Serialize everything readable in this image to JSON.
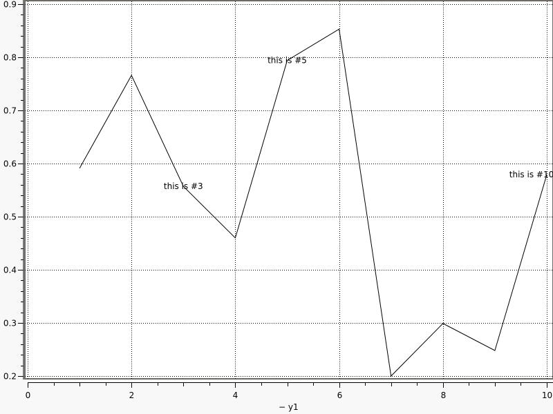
{
  "chart_data": {
    "type": "line",
    "title": "",
    "xlabel": "",
    "ylabel": "",
    "xlim": [
      0,
      10
    ],
    "ylim": [
      0.2,
      0.9
    ],
    "grid": true,
    "legend": {
      "position": "bottom",
      "entries": [
        "y1"
      ]
    },
    "legend_text": "− y1",
    "x_ticks": [
      "0",
      "2",
      "4",
      "6",
      "8",
      "10"
    ],
    "y_ticks": [
      "0.2",
      "0.3",
      "0.4",
      "0.5",
      "0.6",
      "0.7",
      "0.8",
      "0.9"
    ],
    "series": [
      {
        "name": "y1",
        "color": "#000000",
        "x": [
          1,
          2,
          3,
          4,
          5,
          6,
          7,
          8,
          9,
          10
        ],
        "y": [
          0.591,
          0.766,
          0.557,
          0.46,
          0.794,
          0.853,
          0.2,
          0.299,
          0.248,
          0.579
        ]
      }
    ],
    "annotations": [
      {
        "text": "this is #3",
        "x": 3,
        "y": 0.557
      },
      {
        "text": "this is #5",
        "x": 5,
        "y": 0.794
      },
      {
        "text": "this is #10",
        "x": 10,
        "y": 0.579
      }
    ]
  }
}
